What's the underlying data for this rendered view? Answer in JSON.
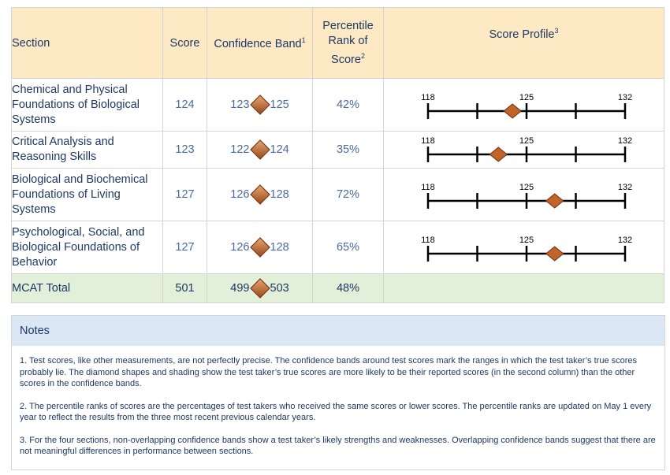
{
  "headers": {
    "section": "Section",
    "score": "Score",
    "confidence": "Confidence Band",
    "confidence_sup": "1",
    "percentile_line1": "Percentile",
    "percentile_line2": "Rank of",
    "percentile_line3": "Score",
    "percentile_sup": "2",
    "profile": "Score Profile",
    "profile_sup": "3"
  },
  "rows": [
    {
      "section": "Chemical and Physical Foundations of Biological Systems",
      "score": "124",
      "band_low": "123",
      "band_high": "125",
      "percentile": "42%",
      "profile_value": 124
    },
    {
      "section": "Critical Analysis and Reasoning Skills",
      "score": "123",
      "band_low": "122",
      "band_high": "124",
      "percentile": "35%",
      "profile_value": 123
    },
    {
      "section": "Biological and Biochemical Foundations of Living Systems",
      "score": "127",
      "band_low": "126",
      "band_high": "128",
      "percentile": "72%",
      "profile_value": 127
    },
    {
      "section": "Psychological, Social, and Biological Foundations of Behavior",
      "score": "127",
      "band_low": "126",
      "band_high": "128",
      "percentile": "65%",
      "profile_value": 127
    }
  ],
  "total": {
    "section": "MCAT Total",
    "score": "501",
    "band_low": "499",
    "band_high": "503",
    "percentile": "48%"
  },
  "profile_scale": {
    "min": 118,
    "mid": 125,
    "max": 132,
    "min_label": "118",
    "mid_label": "125",
    "max_label": "132"
  },
  "notes": {
    "title": "Notes",
    "n1": "1. Test scores, like other measurements, are not perfectly precise. The confidence bands around test scores mark the ranges in which the test taker’s true scores probably lie. The diamond shapes and shading show the test taker’s true scores are more likely to be their reported scores (in the second column) than the other scores in the confidence bands.",
    "n2": "2. The percentile ranks of scores are the percentages of test takers who received the same scores or lower scores. The percentile ranks are updated on May 1 every year to reflect the results from the three most recent previous calendar years.",
    "n3": "3. For the four sections, non-overlapping confidence bands show a test taker’s likely strengths and weaknesses. Overlapping confidence bands suggest that there are not meaningful differences in performance between sections."
  },
  "colors": {
    "header_bg": "#fde9c3",
    "total_bg": "#e2efd9",
    "notes_head_bg": "#dbe7f5",
    "text": "#1f3864",
    "diamond": "#c0642a"
  }
}
